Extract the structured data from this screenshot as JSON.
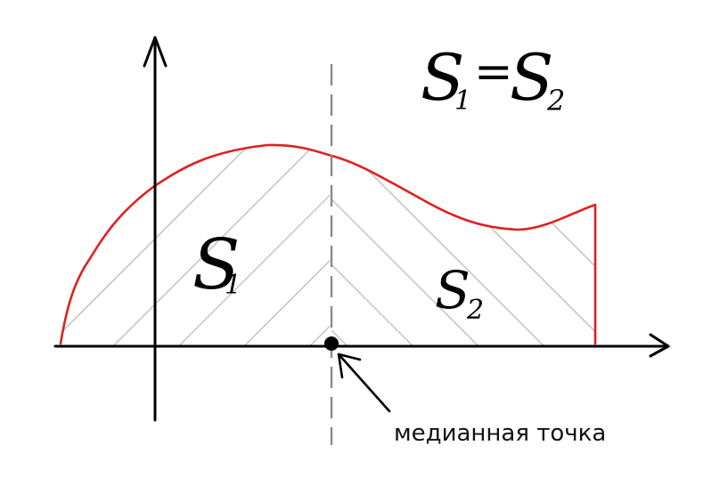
{
  "formula": {
    "s1_letter": "S",
    "s1_sub": "1",
    "equals": "=",
    "s2_letter": "S",
    "s2_sub": "2"
  },
  "region_left": {
    "letter": "S",
    "sub": "1"
  },
  "region_right": {
    "letter": "S",
    "sub": "2"
  },
  "median_label": "медианная точка",
  "colors": {
    "curve": "#e02020",
    "hatch": "#c4c4c4",
    "axis": "#000000",
    "median_line": "#8a8a8a",
    "median_point": "#000000"
  }
}
